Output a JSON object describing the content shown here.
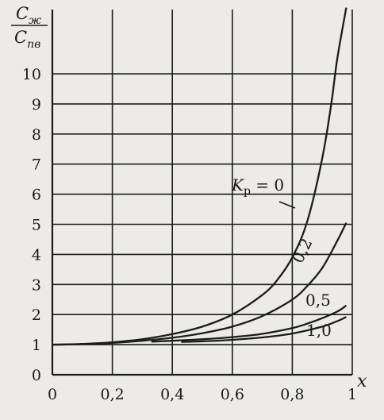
{
  "chart_data": {
    "type": "line",
    "ylabel_numerator": "C",
    "ylabel_numerator_sub": "ж",
    "ylabel_denominator": "C",
    "ylabel_denominator_sub": "пв",
    "xlabel": "x",
    "xlim": [
      0,
      1
    ],
    "ylim": [
      0,
      11
    ],
    "x_ticks": [
      "0",
      "0,2",
      "0,4",
      "0,6",
      "0,8",
      "1"
    ],
    "y_ticks": [
      "0",
      "1",
      "2",
      "3",
      "4",
      "5",
      "6",
      "7",
      "8",
      "9",
      "10"
    ],
    "grid": true,
    "series": [
      {
        "name": "Kр = 0",
        "name_main": "K",
        "name_sub": "р",
        "name_rest": " = 0",
        "x": [
          0,
          0.1,
          0.2,
          0.3,
          0.4,
          0.5,
          0.6,
          0.7,
          0.75,
          0.8,
          0.85,
          0.9,
          0.93,
          0.95,
          0.98
        ],
        "y": [
          1.0,
          1.02,
          1.08,
          1.18,
          1.35,
          1.6,
          2.0,
          2.65,
          3.15,
          3.9,
          5.1,
          7.2,
          9.0,
          10.5,
          12.2
        ]
      },
      {
        "name": "0,2",
        "x": [
          0,
          0.1,
          0.2,
          0.3,
          0.4,
          0.5,
          0.6,
          0.7,
          0.8,
          0.85,
          0.9,
          0.95,
          0.98
        ],
        "y": [
          1.0,
          1.02,
          1.06,
          1.13,
          1.23,
          1.38,
          1.6,
          1.95,
          2.5,
          2.95,
          3.55,
          4.45,
          5.05
        ]
      },
      {
        "name": "0,5",
        "x": [
          0.33,
          0.4,
          0.5,
          0.6,
          0.7,
          0.8,
          0.85,
          0.9,
          0.95,
          0.98
        ],
        "y": [
          1.1,
          1.13,
          1.18,
          1.25,
          1.36,
          1.55,
          1.7,
          1.88,
          2.1,
          2.3
        ]
      },
      {
        "name": "1,0",
        "x": [
          0.43,
          0.5,
          0.6,
          0.7,
          0.8,
          0.9,
          0.95,
          0.98
        ],
        "y": [
          1.09,
          1.11,
          1.16,
          1.24,
          1.37,
          1.6,
          1.78,
          1.92
        ]
      }
    ]
  }
}
